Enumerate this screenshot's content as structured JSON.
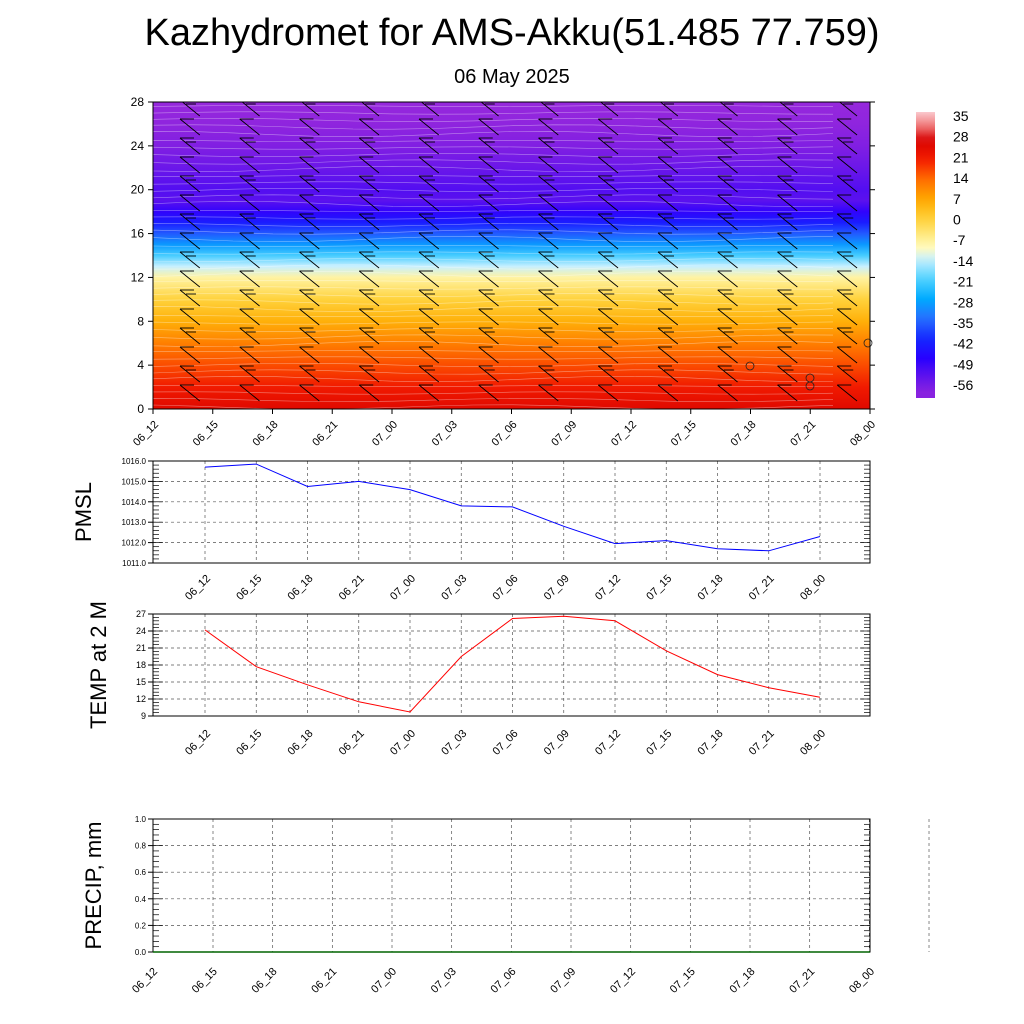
{
  "header": {
    "title": "Kazhydromet for AMS-Akku(51.485 77.759)",
    "subtitle": "06 May 2025"
  },
  "chart_data": [
    {
      "type": "heatmap",
      "description_values": "temperature by height level over time",
      "x_ticks": [
        "06_12",
        "06_15",
        "06_18",
        "06_21",
        "07_00",
        "07_03",
        "07_06",
        "07_09",
        "07_12",
        "07_15",
        "07_18",
        "07_21",
        "08_00"
      ],
      "y_ticks": [
        "0",
        "4",
        "8",
        "12",
        "16",
        "20",
        "24",
        "28"
      ],
      "ylim": [
        0,
        28
      ],
      "colorbar_labels": [
        "35",
        "28",
        "21",
        "14",
        "7",
        "0",
        "-7",
        "-14",
        "-21",
        "-28",
        "-35",
        "-42",
        "-49",
        "-56"
      ],
      "colorbar_range": [
        -63,
        38
      ],
      "profile": [
        {
          "level": 0,
          "value": 26
        },
        {
          "level": 2,
          "value": 22
        },
        {
          "level": 4,
          "value": 17
        },
        {
          "level": 6,
          "value": 12
        },
        {
          "level": 8,
          "value": 6
        },
        {
          "level": 10,
          "value": 0
        },
        {
          "level": 12,
          "value": -8
        },
        {
          "level": 13,
          "value": -14
        },
        {
          "level": 14,
          "value": -22
        },
        {
          "level": 15,
          "value": -30
        },
        {
          "level": 16,
          "value": -37
        },
        {
          "level": 17,
          "value": -44
        },
        {
          "level": 18,
          "value": -50
        },
        {
          "level": 19,
          "value": -55
        },
        {
          "level": 20,
          "value": -54
        },
        {
          "level": 22,
          "value": -57
        },
        {
          "level": 24,
          "value": -60
        },
        {
          "level": 26,
          "value": -62
        },
        {
          "level": 28,
          "value": -63
        }
      ],
      "colors": {
        "hot": "#d40000",
        "warm": "#ff8c00",
        "neutral": "#fff7b0",
        "cold": "#00aaff",
        "colder": "#0000ff",
        "coldest": "#8a2be2"
      }
    },
    {
      "type": "line",
      "ylabel": "PMSL",
      "categories": [
        "06_12",
        "06_15",
        "06_18",
        "06_21",
        "07_00",
        "07_03",
        "07_06",
        "07_09",
        "07_12",
        "07_15",
        "07_18",
        "07_21",
        "08_00"
      ],
      "ylim": [
        1011.0,
        1016.0
      ],
      "y_ticks": [
        "1011.0",
        "1012.0",
        "1013.0",
        "1014.0",
        "1015.0",
        "1016.0"
      ],
      "series": [
        {
          "values": [
            1015.7,
            1015.85,
            1014.75,
            1015.0,
            1014.6,
            1013.8,
            1013.75,
            1012.8,
            1011.95,
            1012.1,
            1011.7,
            1011.6,
            1012.3
          ]
        }
      ],
      "color": "#0000ff"
    },
    {
      "type": "line",
      "ylabel": "TEMP at 2 M",
      "categories": [
        "06_12",
        "06_15",
        "06_18",
        "06_21",
        "07_00",
        "07_03",
        "07_06",
        "07_09",
        "07_12",
        "07_15",
        "07_18",
        "07_21",
        "08_00"
      ],
      "ylim": [
        9,
        27
      ],
      "y_ticks": [
        "9",
        "12",
        "15",
        "18",
        "21",
        "24",
        "27"
      ],
      "series": [
        {
          "values": [
            24.2,
            17.7,
            14.5,
            11.5,
            9.7,
            19.5,
            26.2,
            26.6,
            25.8,
            20.5,
            16.3,
            14.0,
            12.3
          ]
        }
      ],
      "color": "#ff0000"
    },
    {
      "type": "line",
      "ylabel": "PRECIP, mm",
      "categories": [
        "06_12",
        "06_15",
        "06_18",
        "06_21",
        "07_00",
        "07_03",
        "07_06",
        "07_09",
        "07_12",
        "07_15",
        "07_18",
        "07_21",
        "08_00"
      ],
      "ylim": [
        0.0,
        1.0
      ],
      "y_ticks": [
        "0.0",
        "0.2",
        "0.4",
        "0.6",
        "0.8",
        "1.0"
      ],
      "series": [
        {
          "values": [
            0,
            0,
            0,
            0,
            0,
            0,
            0,
            0,
            0,
            0,
            0,
            0,
            0
          ]
        }
      ],
      "color": "#006400"
    }
  ]
}
